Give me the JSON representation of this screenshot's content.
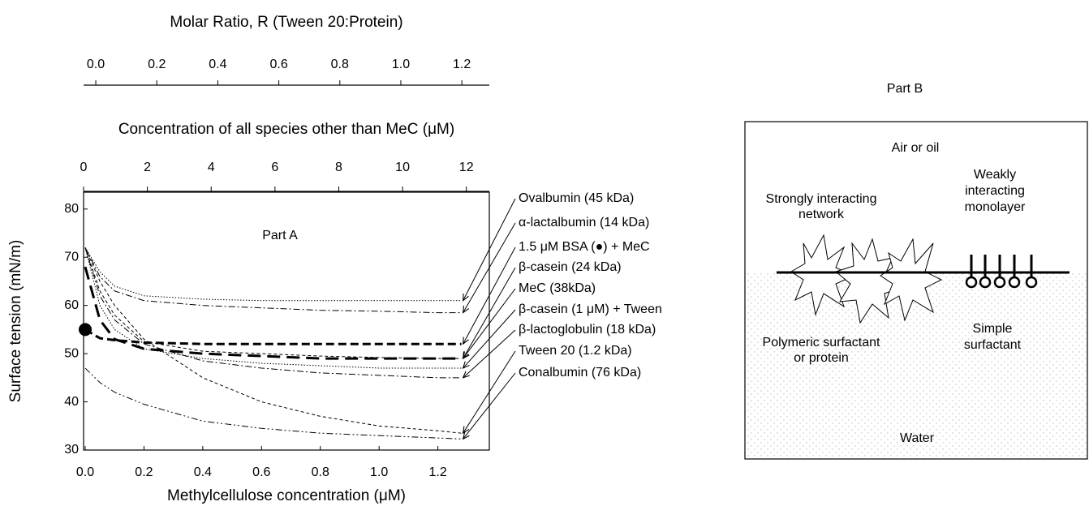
{
  "chart_data": {
    "type": "line",
    "panel_label": "Part A",
    "ylabel": "Surface tension (mN/m)",
    "xlabel": "Methylcellulose concentration (μM)",
    "xlim": [
      0,
      1.375
    ],
    "xticks": [
      {
        "value": 0,
        "label": "0.0"
      },
      0.2,
      0.4,
      0.6,
      0.8,
      {
        "value": 1,
        "label": "1.0"
      },
      1.2
    ],
    "ylim": [
      30,
      83.5
    ],
    "yticks": [
      30,
      40,
      50,
      60,
      70,
      80
    ],
    "top_axes": [
      {
        "label": "Concentration of all species other than MeC (μM)",
        "xlim": [
          0,
          12.72
        ],
        "xticks": [
          0,
          2,
          4,
          6,
          8,
          10,
          12
        ]
      },
      {
        "label": "Molar Ratio, R (Tween 20:Protein)",
        "xlim": [
          -0.04,
          1.29
        ],
        "xticks": [
          {
            "value": 0,
            "label": "0.0"
          },
          0.2,
          0.4,
          0.6,
          0.8,
          {
            "value": 1,
            "label": "1.0"
          },
          1.2
        ]
      }
    ],
    "x": [
      0,
      0.05,
      0.1,
      0.2,
      0.4,
      0.6,
      0.8,
      1.0,
      1.2,
      1.28
    ],
    "series": [
      {
        "name": "Ovalbumin (45 kDa)",
        "color": "#000000",
        "style": "dotted",
        "values": [
          72,
          67,
          64,
          62,
          61.3,
          61,
          61,
          61,
          61,
          61
        ]
      },
      {
        "name": "α-lactalbumin (14 kDa)",
        "color": "#000000",
        "style": "dashdot",
        "values": [
          72,
          66,
          63,
          61,
          60,
          59.5,
          59,
          58.8,
          58.5,
          58.5
        ]
      },
      {
        "name": "1.5 μM BSA (●) + MeC",
        "color": "#000000",
        "style": "thickdash",
        "marker": "circle",
        "values": [
          55,
          53.2,
          52.8,
          52.3,
          52,
          52,
          52,
          52,
          52,
          52
        ]
      },
      {
        "name": "β-casein (24 kDa)",
        "color": "#000000",
        "style": "dashed",
        "values": [
          72,
          63,
          58,
          52.5,
          50.5,
          50,
          49.5,
          49.2,
          49,
          49
        ]
      },
      {
        "name": "MeC (38kDa)",
        "color": "#000000",
        "style": "thicklongdash",
        "values": [
          68,
          57,
          53,
          51,
          50,
          49.5,
          49,
          49,
          49,
          49
        ]
      },
      {
        "name": "β-casein (1 μM) + Tween",
        "color": "#000000",
        "style": "dotted",
        "values": [
          72,
          60,
          55,
          51,
          49,
          48,
          47.5,
          47,
          47,
          47
        ]
      },
      {
        "name": "β-lactoglobulin (18 kDa)",
        "color": "#000000",
        "style": "dashdot",
        "values": [
          72,
          62,
          57,
          52,
          48.5,
          47,
          46,
          45.5,
          45,
          45
        ]
      },
      {
        "name": "Tween 20 (1.2 kDa)",
        "color": "#000000",
        "style": "dashed",
        "values": [
          72,
          65,
          60,
          53,
          45,
          40,
          37,
          35,
          34,
          33.5
        ]
      },
      {
        "name": "Conalbumin (76 kDa)",
        "color": "#000000",
        "style": "dashdotdot",
        "values": [
          47,
          44,
          42,
          39.5,
          36,
          34.5,
          33.5,
          33,
          32.5,
          32.3
        ]
      }
    ]
  },
  "part_b": {
    "title": "Part B",
    "top": "Air or oil",
    "network": [
      "Strongly interacting",
      "network"
    ],
    "monolayer": [
      "Weakly",
      "interacting",
      "monolayer"
    ],
    "polymeric": [
      "Polymeric surfactant",
      "or protein"
    ],
    "simple": [
      "Simple",
      "surfactant"
    ],
    "bottom": "Water"
  }
}
